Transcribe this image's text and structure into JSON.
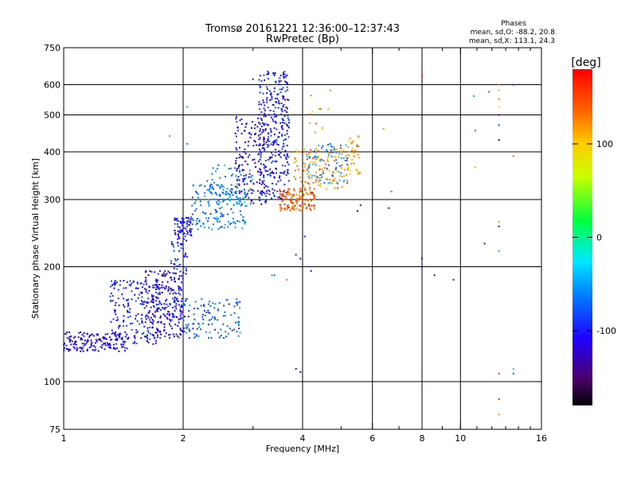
{
  "header": {
    "title_line1": "Tromsø 20161221 12:36:00–12:37:43",
    "title_line2": "RwPretec (Bp)"
  },
  "stats": {
    "heading": "Phases",
    "line1": "mean, sd,O: -88.2, 20.8",
    "line2": "mean, sd,X: 113.1, 24.3"
  },
  "chart_data": {
    "type": "scatter",
    "xlabel": "Frequency [MHz]",
    "ylabel": "Stationary phase Virtual Height [km]",
    "xscale": "log",
    "yscale": "log",
    "xlim": [
      1,
      16
    ],
    "ylim": [
      75,
      750
    ],
    "xticks": [
      1,
      2,
      4,
      6,
      8,
      10,
      16
    ],
    "xtick_labels": [
      "1",
      "2",
      "4",
      "6",
      "8",
      "10",
      "16"
    ],
    "xminor": [
      3,
      5,
      7,
      9,
      11,
      12,
      13,
      14,
      15
    ],
    "yticks": [
      75,
      100,
      200,
      300,
      400,
      500,
      600,
      750
    ],
    "ytick_labels": [
      "75",
      "100",
      "200",
      "300",
      "400",
      "500",
      "600",
      "750"
    ],
    "grid_x": [
      2,
      4,
      6,
      8,
      10
    ],
    "grid_y": [
      100,
      200,
      300,
      400,
      500,
      600
    ],
    "grid": true,
    "colorbar": {
      "label": "[deg]",
      "range": [
        -180,
        180
      ],
      "ticks": [
        100,
        0,
        -100
      ],
      "tick_labels": [
        "100",
        "0",
        "-100"
      ]
    },
    "clusters": [
      {
        "f": [
          1.0,
          1.45
        ],
        "h": [
          120,
          135
        ],
        "phase": -110,
        "n": 160
      },
      {
        "f": [
          1.3,
          1.75
        ],
        "h": [
          125,
          185
        ],
        "phase": -100,
        "n": 200
      },
      {
        "f": [
          1.6,
          2.0
        ],
        "h": [
          130,
          195
        ],
        "phase": -110,
        "n": 200
      },
      {
        "f": [
          1.85,
          2.05
        ],
        "h": [
          135,
          240
        ],
        "phase": -95,
        "n": 90
      },
      {
        "f": [
          2.0,
          2.8
        ],
        "h": [
          130,
          165
        ],
        "phase": -70,
        "n": 110
      },
      {
        "f": [
          1.9,
          2.1
        ],
        "h": [
          240,
          270
        ],
        "phase": -100,
        "n": 70
      },
      {
        "f": [
          2.1,
          2.9
        ],
        "h": [
          250,
          330
        ],
        "phase": -65,
        "n": 150
      },
      {
        "f": [
          2.3,
          3.1
        ],
        "h": [
          290,
          370
        ],
        "phase": -55,
        "n": 70
      },
      {
        "f": [
          2.7,
          3.25
        ],
        "h": [
          290,
          500
        ],
        "phase": -115,
        "n": 150
      },
      {
        "f": [
          3.1,
          3.7
        ],
        "h": [
          300,
          650
        ],
        "phase": -100,
        "n": 320
      },
      {
        "f": [
          3.5,
          4.3
        ],
        "h": [
          280,
          320
        ],
        "phase": 140,
        "n": 130
      },
      {
        "f": [
          3.8,
          5.2
        ],
        "h": [
          320,
          410
        ],
        "phase": 125,
        "n": 130
      },
      {
        "f": [
          4.1,
          5.2
        ],
        "h": [
          330,
          420
        ],
        "phase": -55,
        "n": 70
      },
      {
        "f": [
          5.2,
          5.6
        ],
        "h": [
          350,
          440
        ],
        "phase": 115,
        "n": 40
      },
      {
        "f": [
          4.1,
          4.7
        ],
        "h": [
          450,
          580
        ],
        "phase": 120,
        "n": 12
      }
    ],
    "points": [
      {
        "f": 1.85,
        "h": 440,
        "phase": -40
      },
      {
        "f": 2.05,
        "h": 525,
        "phase": -40
      },
      {
        "f": 2.05,
        "h": 420,
        "phase": -60
      },
      {
        "f": 3.0,
        "h": 620,
        "phase": -100
      },
      {
        "f": 3.35,
        "h": 190,
        "phase": -50
      },
      {
        "f": 3.4,
        "h": 190,
        "phase": -60
      },
      {
        "f": 3.85,
        "h": 215,
        "phase": -100
      },
      {
        "f": 3.95,
        "h": 210,
        "phase": -110
      },
      {
        "f": 4.2,
        "h": 195,
        "phase": -105
      },
      {
        "f": 4.05,
        "h": 240,
        "phase": -100
      },
      {
        "f": 3.85,
        "h": 108,
        "phase": -100
      },
      {
        "f": 3.95,
        "h": 106,
        "phase": -110
      },
      {
        "f": 3.65,
        "h": 185,
        "phase": 130
      },
      {
        "f": 4.7,
        "h": 580,
        "phase": 125
      },
      {
        "f": 5.5,
        "h": 280,
        "phase": -110
      },
      {
        "f": 5.6,
        "h": 290,
        "phase": -100
      },
      {
        "f": 6.6,
        "h": 285,
        "phase": -110
      },
      {
        "f": 6.7,
        "h": 315,
        "phase": -50
      },
      {
        "f": 6.4,
        "h": 460,
        "phase": 120
      },
      {
        "f": 8.0,
        "h": 635,
        "phase": 160
      },
      {
        "f": 8.0,
        "h": 210,
        "phase": -110
      },
      {
        "f": 8.0,
        "h": 200,
        "phase": -105
      },
      {
        "f": 8.6,
        "h": 190,
        "phase": -120
      },
      {
        "f": 9.6,
        "h": 185,
        "phase": -120
      },
      {
        "f": 10.8,
        "h": 560,
        "phase": -50
      },
      {
        "f": 10.9,
        "h": 455,
        "phase": 150
      },
      {
        "f": 10.9,
        "h": 365,
        "phase": 110
      },
      {
        "f": 11.5,
        "h": 230,
        "phase": -110
      },
      {
        "f": 11.8,
        "h": 575,
        "phase": -60
      },
      {
        "f": 12.5,
        "h": 600,
        "phase": 130
      },
      {
        "f": 12.5,
        "h": 580,
        "phase": 110
      },
      {
        "f": 12.5,
        "h": 550,
        "phase": 130
      },
      {
        "f": 12.5,
        "h": 525,
        "phase": 100
      },
      {
        "f": 12.5,
        "h": 500,
        "phase": -130
      },
      {
        "f": 12.5,
        "h": 470,
        "phase": -80
      },
      {
        "f": 12.5,
        "h": 430,
        "phase": -150
      },
      {
        "f": 12.5,
        "h": 262,
        "phase": 120
      },
      {
        "f": 12.5,
        "h": 255,
        "phase": -110
      },
      {
        "f": 12.5,
        "h": 220,
        "phase": -50
      },
      {
        "f": 12.5,
        "h": 105,
        "phase": 150
      },
      {
        "f": 12.5,
        "h": 90,
        "phase": 160
      },
      {
        "f": 12.5,
        "h": 82,
        "phase": 120
      },
      {
        "f": 13.6,
        "h": 390,
        "phase": 130
      },
      {
        "f": 13.6,
        "h": 108,
        "phase": -20
      },
      {
        "f": 13.6,
        "h": 105,
        "phase": -70
      },
      {
        "f": 13.6,
        "h": 600,
        "phase": -90
      }
    ]
  }
}
